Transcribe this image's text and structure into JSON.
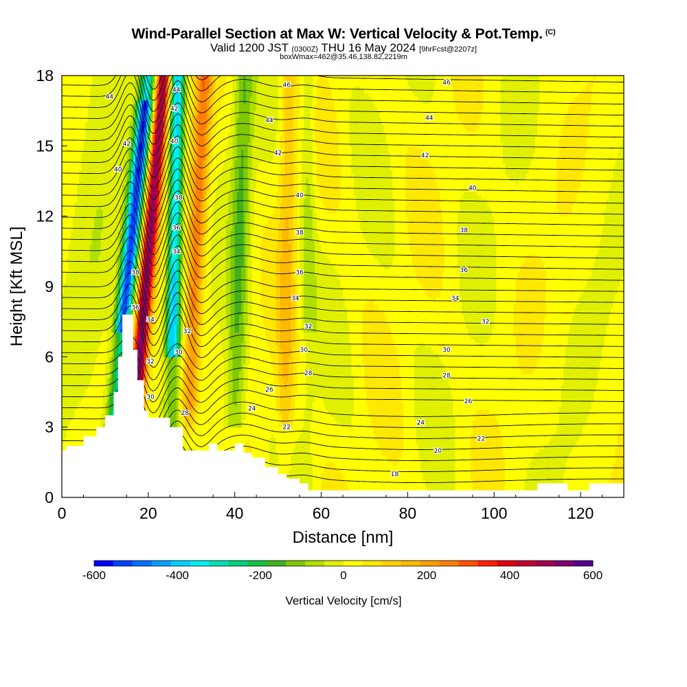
{
  "header": {
    "title": "Wind-Parallel Section at Max W: Vertical Velocity & Pot.Temp.",
    "copyright": "(C)",
    "valid_prefix": "Valid 1200 JST",
    "valid_utc": "(0300Z)",
    "valid_date": "THU 16 May 2024",
    "forecast": "[9hrFcst@2207z]",
    "box_info": "boxWmax=462@35.46,138.82,2219m"
  },
  "chart_data": {
    "type": "heatmap",
    "xlabel": "Distance [nm]",
    "ylabel": "Height [Kft MSL]",
    "xlim": [
      0,
      130
    ],
    "ylim": [
      0,
      18
    ],
    "x_ticks": [
      0,
      20,
      40,
      60,
      80,
      100,
      120
    ],
    "y_ticks": [
      0,
      3,
      6,
      9,
      12,
      15,
      18
    ],
    "colorbar": {
      "label": "Vertical Velocity [cm/s]",
      "range": [
        -600,
        600
      ],
      "ticks": [
        -600,
        -400,
        -200,
        0,
        200,
        400,
        600
      ],
      "colors": [
        "#0000ff",
        "#0040ff",
        "#0070ff",
        "#00a0ff",
        "#00d0ff",
        "#00f0f0",
        "#00e0b0",
        "#00d080",
        "#10c040",
        "#40b020",
        "#80c800",
        "#b0e000",
        "#e0f000",
        "#ffff00",
        "#ffe800",
        "#ffd000",
        "#ffb800",
        "#ffa000",
        "#ff8000",
        "#ff5000",
        "#ff2000",
        "#e00010",
        "#c00030",
        "#a00050",
        "#800070",
        "#500090"
      ]
    },
    "theta_contour_labels": [
      {
        "x": 11,
        "y": 17.1,
        "label": "44"
      },
      {
        "x": 26.5,
        "y": 17.4,
        "label": "44"
      },
      {
        "x": 52,
        "y": 17.6,
        "label": "46"
      },
      {
        "x": 89,
        "y": 17.7,
        "label": "46"
      },
      {
        "x": 48,
        "y": 16.1,
        "label": "44"
      },
      {
        "x": 85,
        "y": 16.2,
        "label": "44"
      },
      {
        "x": 26,
        "y": 16.6,
        "label": "42"
      },
      {
        "x": 15,
        "y": 15.1,
        "label": "42"
      },
      {
        "x": 50,
        "y": 14.7,
        "label": "42"
      },
      {
        "x": 84,
        "y": 14.6,
        "label": "42"
      },
      {
        "x": 26,
        "y": 15.2,
        "label": "40"
      },
      {
        "x": 13,
        "y": 14.0,
        "label": "40"
      },
      {
        "x": 55,
        "y": 12.9,
        "label": "40"
      },
      {
        "x": 95,
        "y": 13.2,
        "label": "40"
      },
      {
        "x": 27,
        "y": 12.8,
        "label": "38"
      },
      {
        "x": 55,
        "y": 11.3,
        "label": "38"
      },
      {
        "x": 93,
        "y": 11.4,
        "label": "38"
      },
      {
        "x": 26.5,
        "y": 11.5,
        "label": "36"
      },
      {
        "x": 55,
        "y": 9.6,
        "label": "36"
      },
      {
        "x": 93,
        "y": 9.7,
        "label": "36"
      },
      {
        "x": 26.5,
        "y": 10.5,
        "label": "34"
      },
      {
        "x": 17,
        "y": 9.6,
        "label": "38"
      },
      {
        "x": 54,
        "y": 8.5,
        "label": "34"
      },
      {
        "x": 91,
        "y": 8.5,
        "label": "34"
      },
      {
        "x": 17,
        "y": 8.1,
        "label": "36"
      },
      {
        "x": 20.5,
        "y": 7.6,
        "label": "34"
      },
      {
        "x": 57,
        "y": 7.3,
        "label": "32"
      },
      {
        "x": 98,
        "y": 7.5,
        "label": "32"
      },
      {
        "x": 29,
        "y": 7.1,
        "label": "32"
      },
      {
        "x": 27,
        "y": 6.2,
        "label": "30"
      },
      {
        "x": 56,
        "y": 6.3,
        "label": "30"
      },
      {
        "x": 89,
        "y": 6.3,
        "label": "30"
      },
      {
        "x": 20.5,
        "y": 5.8,
        "label": "32"
      },
      {
        "x": 57,
        "y": 5.3,
        "label": "28"
      },
      {
        "x": 89,
        "y": 5.2,
        "label": "28"
      },
      {
        "x": 48,
        "y": 4.6,
        "label": "26"
      },
      {
        "x": 94,
        "y": 4.1,
        "label": "26"
      },
      {
        "x": 20.5,
        "y": 4.3,
        "label": "30"
      },
      {
        "x": 44,
        "y": 3.8,
        "label": "24"
      },
      {
        "x": 83,
        "y": 3.2,
        "label": "24"
      },
      {
        "x": 28.5,
        "y": 3.6,
        "label": "28"
      },
      {
        "x": 52,
        "y": 3.0,
        "label": "22"
      },
      {
        "x": 97,
        "y": 2.5,
        "label": "22"
      },
      {
        "x": 87,
        "y": 2.0,
        "label": "20"
      },
      {
        "x": 77,
        "y": 1.0,
        "label": "18"
      }
    ]
  }
}
